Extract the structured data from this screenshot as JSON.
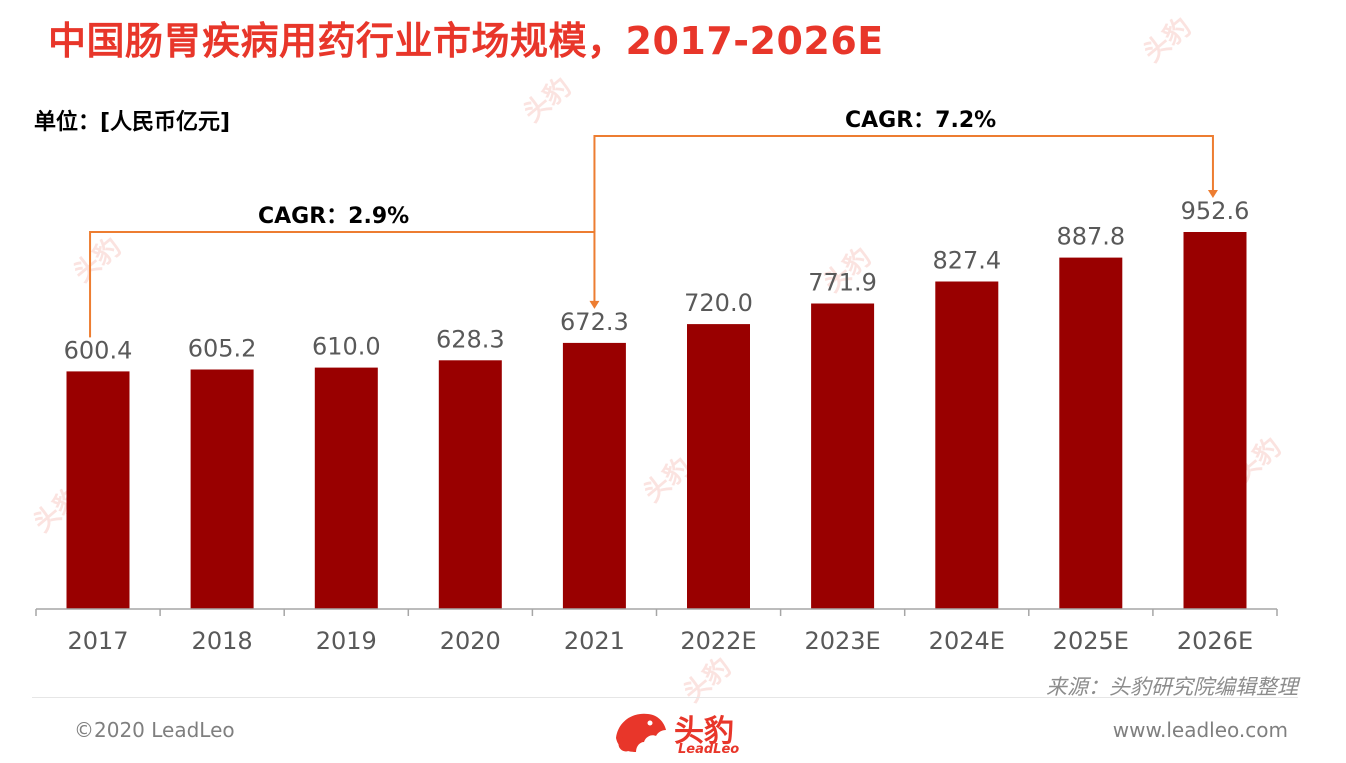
{
  "page": {
    "title": "中国肠胃疾病用药行业市场规模，2017-2026E",
    "unit_label": "单位：[人民币亿元]",
    "source": "来源：头豹研究院编辑整理",
    "copyright": "©2020 LeadLeo",
    "website": "www.leadleo.com",
    "brand_cn": "头豹",
    "brand_en": "LeadLeo",
    "watermark_text": "头豹"
  },
  "colors": {
    "title": "#e8362a",
    "bar": "#990000",
    "bracket": "#ed7d31",
    "axis": "#a6a6a6",
    "label": "#595959"
  },
  "chart_data": {
    "type": "bar",
    "categories": [
      "2017",
      "2018",
      "2019",
      "2020",
      "2021",
      "2022E",
      "2023E",
      "2024E",
      "2025E",
      "2026E"
    ],
    "values": [
      600.4,
      605.2,
      610.0,
      628.3,
      672.3,
      720.0,
      771.9,
      827.4,
      887.8,
      952.6
    ],
    "data_labels": [
      "600.4",
      "605.2",
      "610.0",
      "628.3",
      "672.3",
      "720.0",
      "771.9",
      "827.4",
      "887.8",
      "952.6"
    ],
    "ylim": [
      0,
      952.6
    ],
    "grid": false,
    "legend": "none",
    "annotations": [
      {
        "label": "CAGR：2.9%",
        "from": "2017",
        "to": "2021"
      },
      {
        "label": "CAGR：7.2%",
        "from": "2021",
        "to": "2026E"
      }
    ]
  }
}
